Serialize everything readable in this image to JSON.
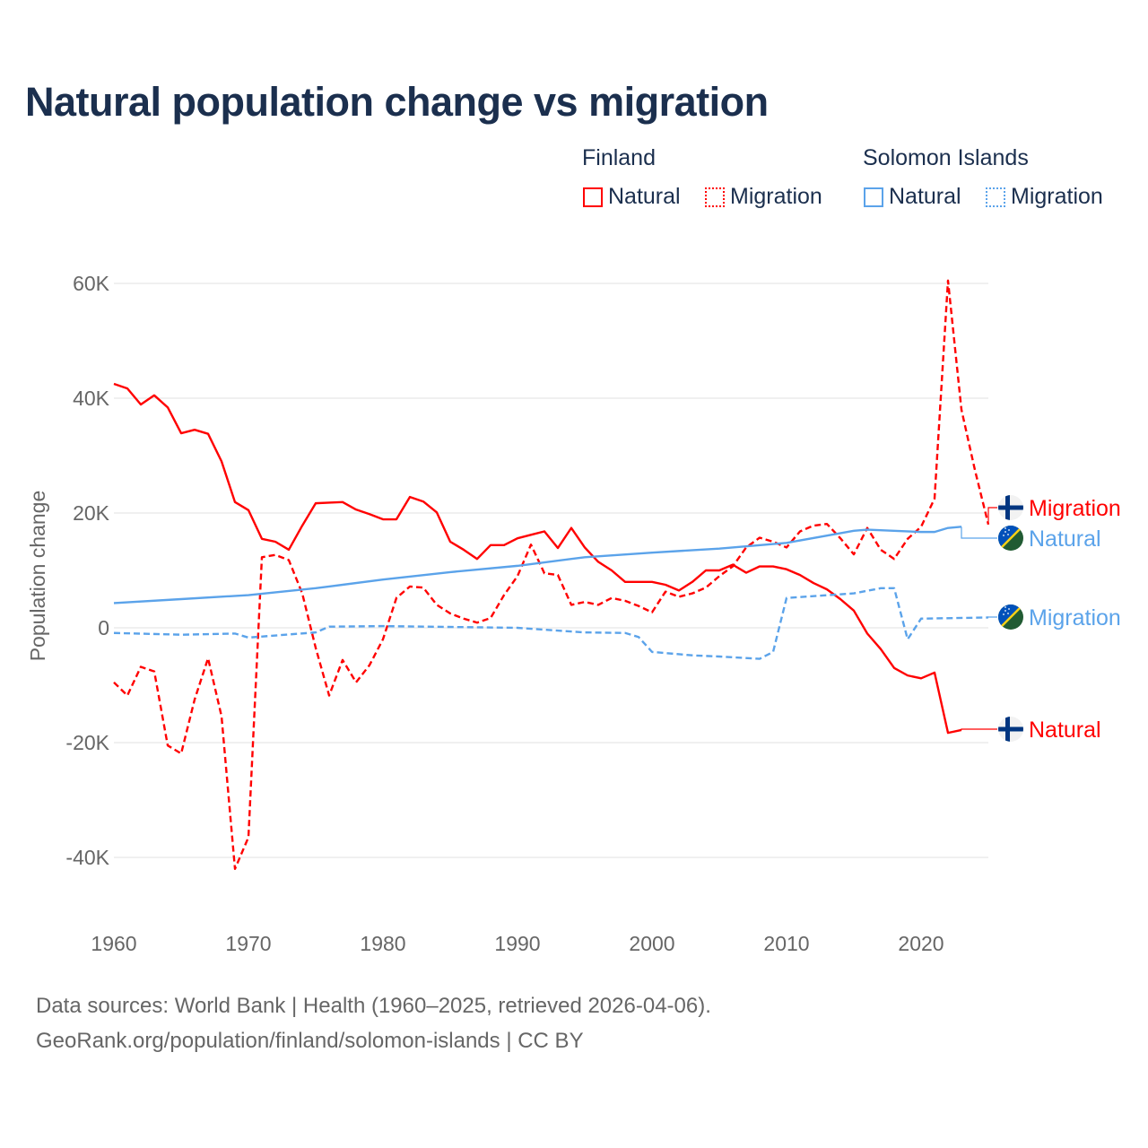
{
  "title": "Natural population change vs migration",
  "legend": {
    "groups": [
      {
        "name": "Finland",
        "items": [
          {
            "label": "Natural",
            "style": "solid",
            "color": "#ff0000"
          },
          {
            "label": "Migration",
            "style": "dotted",
            "color": "#ff0000"
          }
        ]
      },
      {
        "name": "Solomon Islands",
        "items": [
          {
            "label": "Natural",
            "style": "solid",
            "color": "#5ba3ea"
          },
          {
            "label": "Migration",
            "style": "dotted",
            "color": "#5ba3ea"
          }
        ]
      }
    ]
  },
  "footer": {
    "line1": "Data sources: World Bank | Health (1960–2025, retrieved 2026-04-06).",
    "line2": "GeoRank.org/population/finland/solomon-islands | CC BY"
  },
  "chart_data": {
    "type": "line",
    "title": "Natural population change vs migration",
    "xlabel": "",
    "ylabel": "Population change",
    "xlim": [
      1960,
      2025
    ],
    "ylim": [
      -50000,
      62000
    ],
    "x_ticks": [
      1960,
      1970,
      1980,
      1990,
      2000,
      2010,
      2020
    ],
    "y_ticks": [
      -40000,
      -20000,
      0,
      20000,
      40000,
      60000
    ],
    "y_tick_labels": [
      "-40K",
      "-20K",
      "0",
      "20K",
      "40K",
      "60K"
    ],
    "grid": true,
    "series": [
      {
        "name": "Natural",
        "country": "Finland",
        "color": "#ff0000",
        "dash": false,
        "end_label": "Natural",
        "flag": "finland",
        "x": [
          1960,
          1961,
          1962,
          1963,
          1964,
          1965,
          1966,
          1967,
          1968,
          1969,
          1970,
          1971,
          1972,
          1973,
          1974,
          1975,
          1976,
          1977,
          1978,
          1979,
          1980,
          1981,
          1982,
          1983,
          1984,
          1985,
          1986,
          1987,
          1988,
          1989,
          1990,
          1991,
          1992,
          1993,
          1994,
          1995,
          1996,
          1997,
          1998,
          1999,
          2000,
          2001,
          2002,
          2003,
          2004,
          2005,
          2006,
          2007,
          2008,
          2009,
          2010,
          2011,
          2012,
          2013,
          2014,
          2015,
          2016,
          2017,
          2018,
          2019,
          2020,
          2021,
          2022,
          2023
        ],
        "values": [
          42500,
          41700,
          38900,
          40500,
          38400,
          33900,
          34500,
          33800,
          29000,
          21900,
          20500,
          15500,
          15000,
          13600,
          17800,
          21700,
          21800,
          21900,
          20600,
          19800,
          18900,
          18900,
          22800,
          22000,
          20100,
          15000,
          13600,
          12000,
          14400,
          14400,
          15600,
          16200,
          16800,
          13900,
          17400,
          14000,
          11500,
          10000,
          8000,
          8000,
          8000,
          7500,
          6500,
          8000,
          10000,
          10000,
          11000,
          9600,
          10700,
          10700,
          10200,
          9200,
          7800,
          6700,
          5000,
          3000,
          -1000,
          -3700,
          -7000,
          -8300,
          -8800,
          -7800,
          -18300,
          -17800
        ]
      },
      {
        "name": "Migration",
        "country": "Finland",
        "color": "#ff0000",
        "dash": true,
        "end_label": "Migration",
        "flag": "finland",
        "x": [
          1960,
          1961,
          1962,
          1963,
          1964,
          1965,
          1966,
          1967,
          1968,
          1969,
          1970,
          1971,
          1972,
          1973,
          1974,
          1975,
          1976,
          1977,
          1978,
          1979,
          1980,
          1981,
          1982,
          1983,
          1984,
          1985,
          1986,
          1987,
          1988,
          1989,
          1990,
          1991,
          1992,
          1993,
          1994,
          1995,
          1996,
          1997,
          1998,
          1999,
          2000,
          2001,
          2002,
          2003,
          2004,
          2005,
          2006,
          2007,
          2008,
          2009,
          2010,
          2011,
          2012,
          2013,
          2014,
          2015,
          2016,
          2017,
          2018,
          2019,
          2020,
          2021,
          2022,
          2023,
          2024,
          2025
        ],
        "values": [
          -9500,
          -11800,
          -6800,
          -7600,
          -20500,
          -21900,
          -12500,
          -5300,
          -15400,
          -42000,
          -36500,
          12300,
          12700,
          11800,
          6000,
          -3500,
          -11800,
          -5600,
          -9500,
          -6500,
          -2000,
          5200,
          7200,
          7000,
          4000,
          2500,
          1600,
          900,
          1700,
          5700,
          9000,
          14500,
          9500,
          9200,
          4000,
          4500,
          4000,
          5200,
          4700,
          3800,
          2700,
          6300,
          5400,
          6000,
          7000,
          9000,
          10700,
          14000,
          15700,
          15000,
          14000,
          16800,
          17800,
          18100,
          15600,
          12800,
          17400,
          13600,
          12000,
          15500,
          17600,
          22500,
          60500,
          38000,
          27500,
          18000
        ]
      },
      {
        "name": "Natural",
        "country": "Solomon Islands",
        "color": "#5ba3ea",
        "dash": false,
        "end_label": "Natural",
        "flag": "solomon-islands",
        "x": [
          1960,
          1965,
          1970,
          1975,
          1976,
          1980,
          1985,
          1990,
          1995,
          2000,
          2005,
          2010,
          2015,
          2016,
          2020,
          2021,
          2022,
          2023
        ],
        "values": [
          4300,
          5000,
          5700,
          6900,
          7200,
          8400,
          9700,
          10800,
          12300,
          13100,
          13800,
          14800,
          16900,
          17100,
          16700,
          16700,
          17400,
          17600
        ]
      },
      {
        "name": "Migration",
        "country": "Solomon Islands",
        "color": "#5ba3ea",
        "dash": true,
        "end_label": "Migration",
        "flag": "solomon-islands",
        "x": [
          1960,
          1965,
          1969,
          1970,
          1975,
          1976,
          1980,
          1990,
          1995,
          1998,
          1999,
          2000,
          2003,
          2005,
          2008,
          2009,
          2010,
          2015,
          2017,
          2018,
          2019,
          2020,
          2025
        ],
        "values": [
          -900,
          -1200,
          -1000,
          -1700,
          -800,
          200,
          300,
          0,
          -800,
          -900,
          -1600,
          -4200,
          -4800,
          -5000,
          -5400,
          -4200,
          5200,
          6000,
          6900,
          6900,
          -2000,
          1600,
          1800
        ]
      }
    ]
  }
}
